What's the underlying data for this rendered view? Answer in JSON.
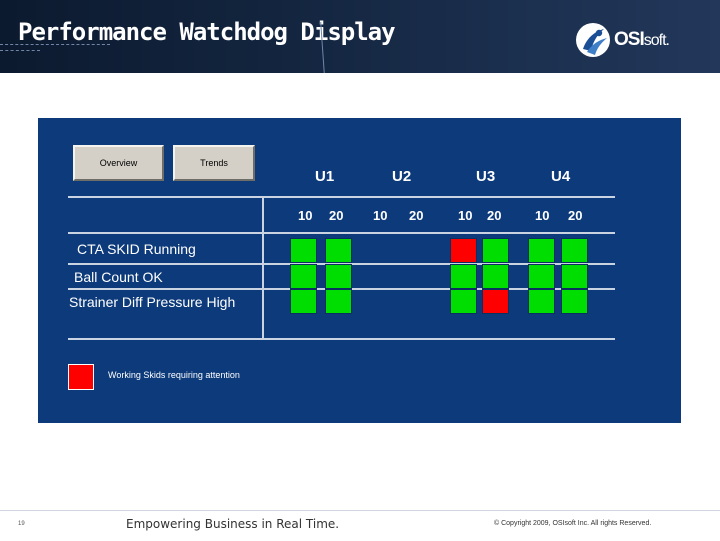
{
  "header": {
    "title": "Performance Watchdog Display",
    "logo": {
      "icon": "osisoft-swirl-icon",
      "brand": "OSI",
      "brand_suffix": "soft",
      "trademark": "."
    }
  },
  "display": {
    "buttons": {
      "overview": "Overview",
      "trends": "Trends"
    },
    "units": [
      {
        "name": "U1",
        "subs": [
          "10",
          "20"
        ]
      },
      {
        "name": "U2",
        "subs": [
          "10",
          "20"
        ]
      },
      {
        "name": "U3",
        "subs": [
          "10",
          "20"
        ]
      },
      {
        "name": "U4",
        "subs": [
          "10",
          "20"
        ]
      }
    ],
    "rows": [
      {
        "label": "CTA SKID Running",
        "states": [
          "green",
          "green",
          "none",
          "none",
          "red",
          "green",
          "green",
          "green"
        ]
      },
      {
        "label": "Ball Count OK",
        "states": [
          "green",
          "green",
          "none",
          "none",
          "green",
          "green",
          "green",
          "green"
        ]
      },
      {
        "label": "Strainer Diff Pressure High",
        "states": [
          "green",
          "green",
          "none",
          "none",
          "green",
          "red",
          "green",
          "green"
        ]
      }
    ],
    "colors": {
      "ok": "#00dd00",
      "alert": "#ff0000",
      "panel": "#0d3a7a"
    },
    "legend": {
      "text": "Working Skids requiring attention",
      "color": "#ff0000"
    }
  },
  "footer": {
    "page_number": "19",
    "tagline": "Empowering Business in Real Time.",
    "copyright": "© Copyright 2009, OSIsoft Inc. All rights Reserved."
  }
}
